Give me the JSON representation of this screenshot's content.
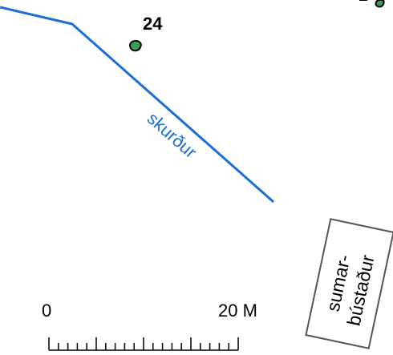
{
  "map": {
    "feature_label": "24",
    "ditch_label": "skurður",
    "building_label_line1": "sumar-",
    "building_label_line2": "bústaður",
    "colors": {
      "ditch": "#1a6fd6",
      "stone_fill": "#3d9d52",
      "outline": "#000000",
      "building_stroke": "#555555"
    }
  },
  "scale_bar": {
    "start_label": "0",
    "end_label": "20 M"
  }
}
